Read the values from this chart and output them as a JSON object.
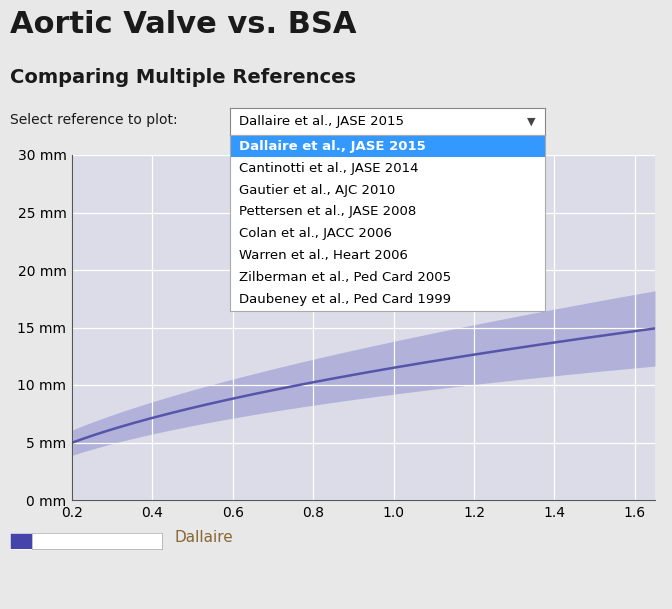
{
  "title": "Aortic Valve vs. BSA",
  "subtitle": "Comparing Multiple References",
  "dropdown_label": "Select reference to plot:",
  "dropdown_selected": "Dallaire et al., JASE 2015",
  "dropdown_items": [
    "Dallaire et al., JASE 2015",
    "Cantinotti et al., JASE 2014",
    "Gautier et al., AJC 2010",
    "Pettersen et al., JASE 2008",
    "Colan et al., JACC 2006",
    "Warren et al., Heart 2006",
    "Zilberman et al., Ped Card 2005",
    "Daubeney et al., Ped Card 1999"
  ],
  "xmin": 0.2,
  "xmax": 1.65,
  "ymin": 0,
  "ymax": 30,
  "xticks": [
    0.2,
    0.4,
    0.6,
    0.8,
    1.0,
    1.2,
    1.4,
    1.6
  ],
  "yticks": [
    0,
    5,
    10,
    15,
    20,
    25,
    30
  ],
  "line_color": "#5555aa",
  "band_color": "#8888cc",
  "band_alpha": 0.5,
  "bg_color": "#e8e8e8",
  "plot_bg_color": "#dcdce8",
  "legend_label": "Dallaire",
  "legend_color": "#4444aa",
  "highlight_color": "#3399ff",
  "title_fontsize": 22,
  "subtitle_fontsize": 14,
  "label_fontsize": 10,
  "tick_fontsize": 10,
  "legend_text_color": "#886633"
}
